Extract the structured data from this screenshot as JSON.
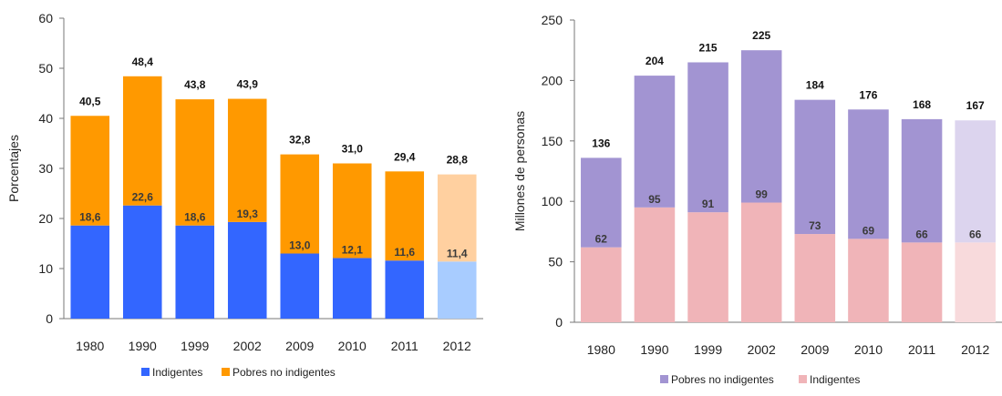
{
  "chart_data": [
    {
      "type": "bar",
      "stacked": true,
      "categories": [
        "1980",
        "1990",
        "1999",
        "2002",
        "2009",
        "2010",
        "2011",
        "2012"
      ],
      "ylabel": "Porcentajes",
      "ylim": [
        0,
        60
      ],
      "yticks": [
        "0",
        "10",
        "20",
        "30",
        "40",
        "50",
        "60"
      ],
      "series": [
        {
          "name": "Indigentes",
          "values": [
            18.6,
            22.6,
            18.6,
            19.3,
            13.0,
            12.1,
            11.6,
            11.4
          ],
          "color": "#3366ff",
          "projected_color": "#a8ccff"
        },
        {
          "name": "Pobres no indigentes",
          "values": [
            21.9,
            25.8,
            25.2,
            24.6,
            19.8,
            18.9,
            17.8,
            17.4
          ],
          "color": "#ff9900",
          "projected_color": "#ffd0a0"
        }
      ],
      "total_labels": [
        "40,5",
        "48,4",
        "43,8",
        "43,9",
        "32,8",
        "31,0",
        "29,4",
        "28,8"
      ],
      "inner_labels": [
        "18,6",
        "22,6",
        "18,6",
        "19,3",
        "13,0",
        "12,1",
        "11,6",
        "11,4"
      ],
      "legend": [
        "Indigentes",
        "Pobres no indigentes"
      ],
      "legend_position": "bottom"
    },
    {
      "type": "bar",
      "stacked": true,
      "categories": [
        "1980",
        "1990",
        "1999",
        "2002",
        "2009",
        "2010",
        "2011",
        "2012"
      ],
      "ylabel": "Millones de personas",
      "ylim": [
        0,
        250
      ],
      "yticks": [
        "0",
        "50",
        "100",
        "150",
        "200",
        "250"
      ],
      "series": [
        {
          "name": "Indigentes",
          "values": [
            62,
            95,
            91,
            99,
            73,
            69,
            66,
            66
          ],
          "color": "#f0b4b8",
          "projected_color": "#f8dadc"
        },
        {
          "name": "Pobres no indigentes",
          "values": [
            74,
            109,
            124,
            126,
            111,
            107,
            102,
            101
          ],
          "color": "#a294d2",
          "projected_color": "#dcd4ee"
        }
      ],
      "total_labels": [
        "136",
        "204",
        "215",
        "225",
        "184",
        "176",
        "168",
        "167"
      ],
      "inner_labels": [
        "62",
        "95",
        "91",
        "99",
        "73",
        "69",
        "66",
        "66"
      ],
      "legend": [
        "Pobres no indigentes",
        "Indigentes"
      ],
      "legend_position": "bottom"
    }
  ]
}
